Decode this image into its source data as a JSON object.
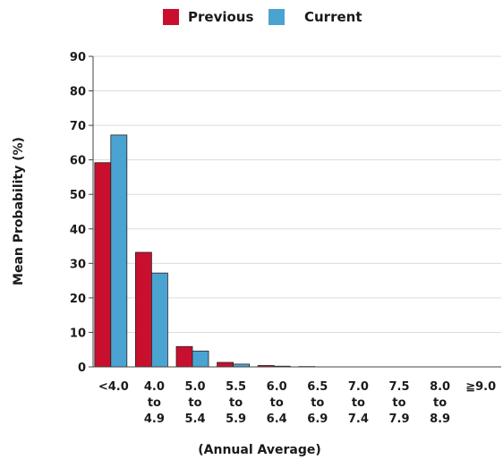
{
  "chart_data": {
    "type": "bar",
    "title": "",
    "xlabel": "(Annual Average)",
    "ylabel": "Mean Probability (%)",
    "ylim": [
      0,
      90
    ],
    "yticks": [
      "0",
      "10",
      "20",
      "30",
      "40",
      "50",
      "60",
      "70",
      "80",
      "90"
    ],
    "grid": true,
    "legend_position": "top-center",
    "categories": [
      [
        "<4.0"
      ],
      [
        "4.0",
        "to",
        "4.9"
      ],
      [
        "5.0",
        "to",
        "5.4"
      ],
      [
        "5.5",
        "to",
        "5.9"
      ],
      [
        "6.0",
        "to",
        "6.4"
      ],
      [
        "6.5",
        "to",
        "6.9"
      ],
      [
        "7.0",
        "to",
        "7.4"
      ],
      [
        "7.5",
        "to",
        "7.9"
      ],
      [
        "8.0",
        "to",
        "8.9"
      ],
      [
        "≧9.0"
      ]
    ],
    "series": [
      {
        "name": "Previous",
        "color": "#c8102e",
        "values": [
          59.2,
          33.2,
          5.9,
          1.3,
          0.4,
          0.1,
          0.0,
          0.0,
          0.0,
          0.0
        ]
      },
      {
        "name": "Current",
        "color": "#4ba3d1",
        "values": [
          67.2,
          27.2,
          4.6,
          0.8,
          0.2,
          0.0,
          0.0,
          0.0,
          0.0,
          0.0
        ]
      }
    ]
  }
}
